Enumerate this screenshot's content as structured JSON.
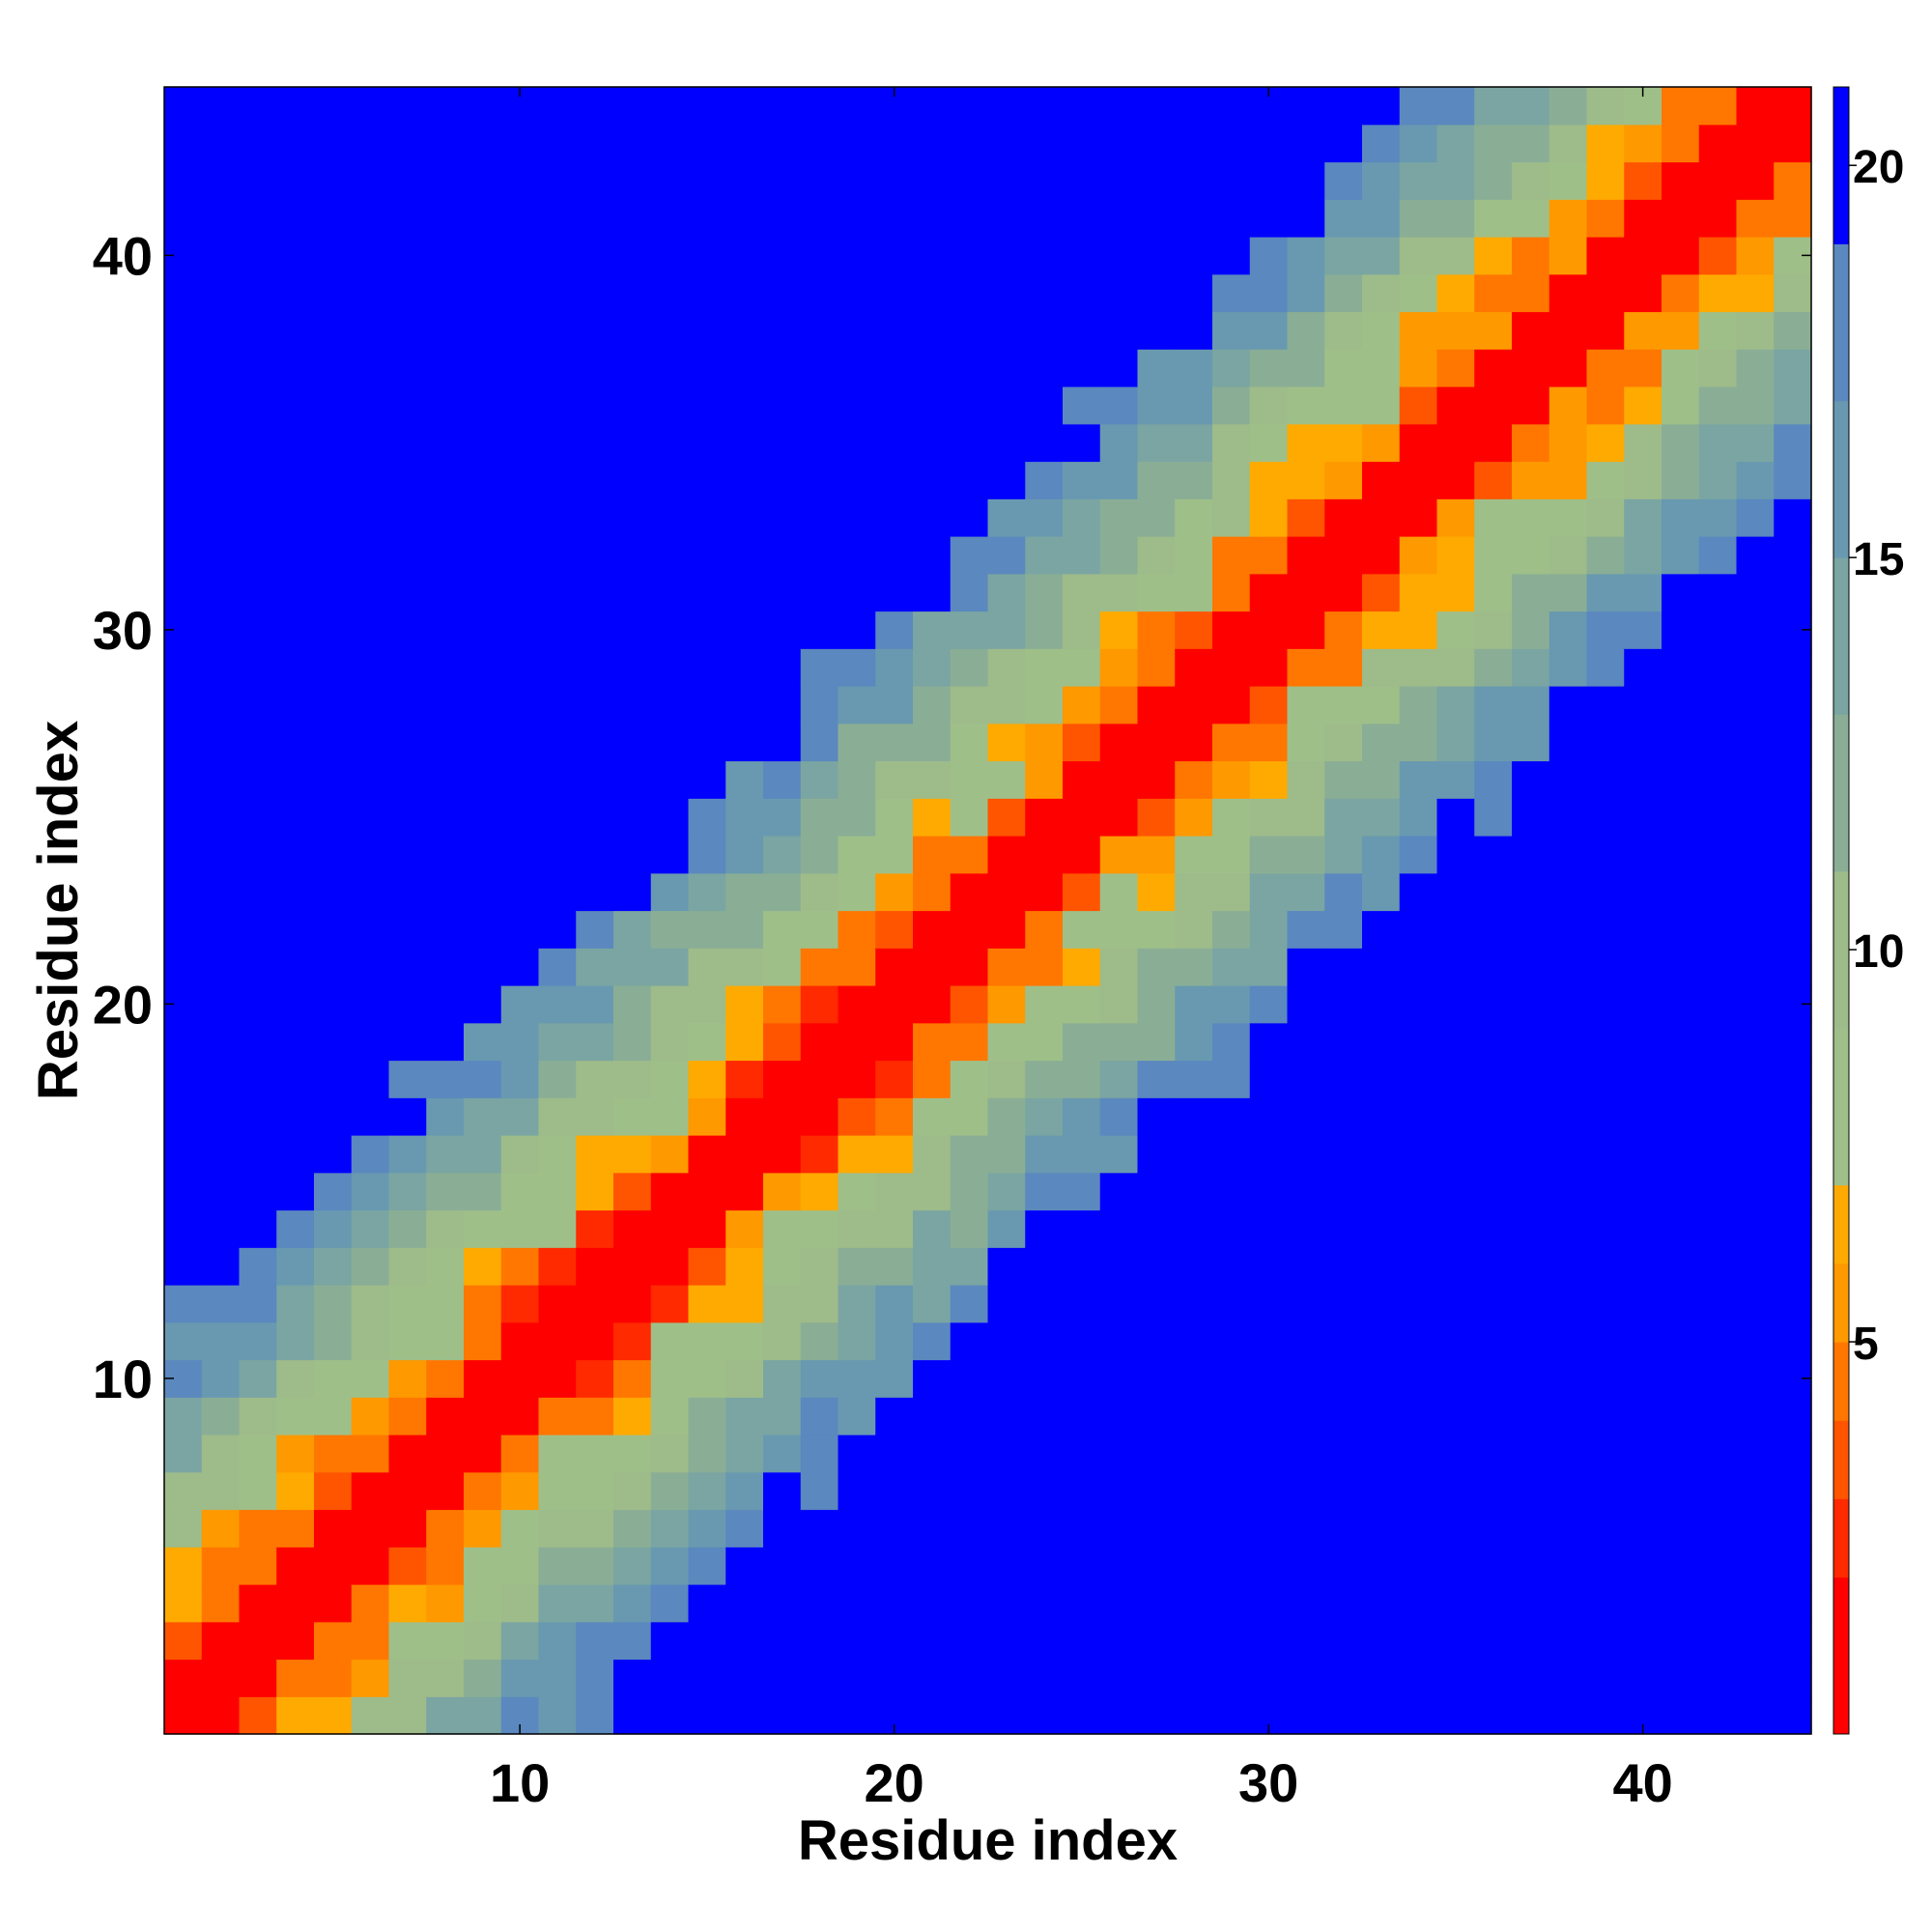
{
  "chart_data": {
    "type": "heatmap",
    "title": "",
    "xlabel": "Residue index",
    "ylabel": "Residue index",
    "n_residues": 44,
    "xlim": [
      0.5,
      44.5
    ],
    "ylim": [
      0.5,
      44.5
    ],
    "x_ticks": [
      10,
      20,
      30,
      40
    ],
    "y_ticks": [
      10,
      20,
      30,
      40
    ],
    "grid": false,
    "colorbar": {
      "position": "right",
      "range": [
        0,
        21
      ],
      "ticks": [
        5,
        10,
        15,
        20
      ],
      "levels": [
        {
          "max": 2,
          "color": "#ff0000"
        },
        {
          "max": 3,
          "color": "#ff2a00"
        },
        {
          "max": 4,
          "color": "#ff5500"
        },
        {
          "max": 5,
          "color": "#ff7700"
        },
        {
          "max": 6,
          "color": "#ff9900"
        },
        {
          "max": 7,
          "color": "#ffaa00"
        },
        {
          "max": 9,
          "color": "#9fbf89"
        },
        {
          "max": 11,
          "color": "#9ebb8a"
        },
        {
          "max": 13,
          "color": "#8aae95"
        },
        {
          "max": 15,
          "color": "#7aa5a2"
        },
        {
          "max": 17,
          "color": "#6899b0"
        },
        {
          "max": 19,
          "color": "#5a88bf"
        },
        {
          "max": 21,
          "color": "#0000ff"
        }
      ],
      "overflow_color": "#0000ff"
    },
    "symmetric": true,
    "value_model": {
      "description_of_cells": "distance map between residue pairs, approximately symmetric",
      "slope": 0.8,
      "offset": 0.4,
      "cap": 22
    },
    "far_cells_upper_left": [
      [
        1,
        15
      ],
      [
        2,
        15
      ],
      [
        3,
        17
      ],
      [
        4,
        17
      ],
      [
        5,
        19
      ],
      [
        6,
        20
      ],
      [
        7,
        21
      ],
      [
        8,
        22
      ],
      [
        9,
        23
      ],
      [
        10,
        24
      ],
      [
        11,
        25
      ],
      [
        12,
        26
      ],
      [
        13,
        27
      ],
      [
        14,
        28
      ],
      [
        15,
        30
      ],
      [
        16,
        31
      ],
      [
        17,
        32
      ],
      [
        18,
        33
      ],
      [
        19,
        34
      ],
      [
        20,
        35
      ],
      [
        21,
        36
      ],
      [
        22,
        37
      ],
      [
        23,
        38
      ],
      [
        24,
        40
      ],
      [
        25,
        41
      ],
      [
        26,
        42
      ],
      [
        27,
        43
      ]
    ]
  }
}
